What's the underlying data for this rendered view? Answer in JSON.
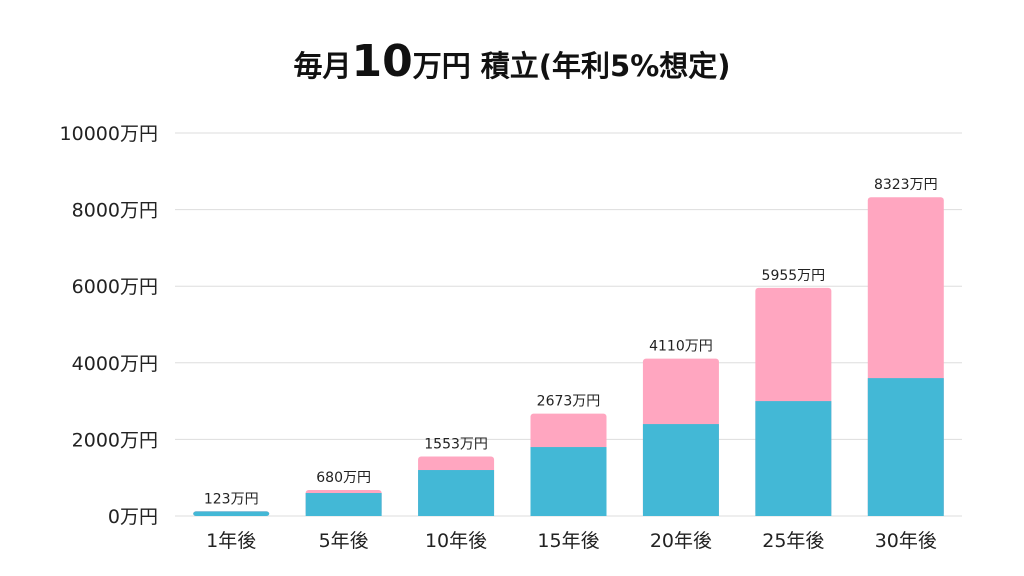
{
  "title": {
    "prefix": "毎月",
    "amount": "10",
    "suffix": "万円 積立(年利5%想定)"
  },
  "colors": {
    "principal": "#43b8d6",
    "gain": "#ffa6c0",
    "grid": "#dddddd",
    "text": "#222222"
  },
  "chart_data": {
    "type": "bar",
    "stacked": true,
    "categories": [
      "1年後",
      "5年後",
      "10年後",
      "15年後",
      "20年後",
      "25年後",
      "30年後"
    ],
    "series": [
      {
        "values": [
          120,
          600,
          1200,
          1800,
          2400,
          3000,
          3600
        ]
      },
      {
        "values": [
          3,
          80,
          353,
          873,
          1710,
          2955,
          4723
        ]
      }
    ],
    "totals": [
      123,
      680,
      1553,
      2673,
      4110,
      5955,
      8323
    ],
    "total_labels": [
      "123万円",
      "680万円",
      "1553万円",
      "2673万円",
      "4110万円",
      "5955万円",
      "8323万円"
    ],
    "yticks": [
      0,
      2000,
      4000,
      6000,
      8000,
      10000
    ],
    "ytick_labels": [
      "0万円",
      "2000万円",
      "4000万円",
      "6000万円",
      "8000万円",
      "10000万円"
    ],
    "ylim": [
      0,
      10000
    ],
    "grid": true,
    "legend": false
  }
}
